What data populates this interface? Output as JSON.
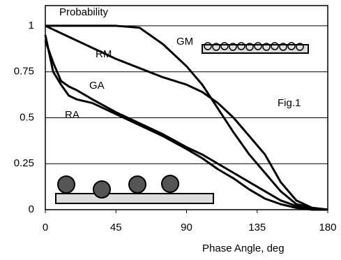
{
  "chart_data": {
    "type": "line",
    "title": "Probability",
    "x_label": "Phase Angle, deg",
    "annotation": "Fig.1",
    "x": [
      0,
      5,
      10,
      15,
      20,
      30,
      45,
      60,
      75,
      90,
      100,
      110,
      120,
      130,
      140,
      150,
      160,
      170,
      180
    ],
    "series": [
      {
        "name": "GM",
        "color": "#000000",
        "values": [
          1,
          1,
          1,
          1,
          1,
          1,
          1,
          0.99,
          0.9,
          0.78,
          0.68,
          0.55,
          0.42,
          0.3,
          0.2,
          0.1,
          0.03,
          0.01,
          0
        ]
      },
      {
        "name": "RM",
        "color": "#000000",
        "values": [
          1,
          0.98,
          0.96,
          0.94,
          0.92,
          0.88,
          0.82,
          0.77,
          0.72,
          0.68,
          0.64,
          0.58,
          0.5,
          0.4,
          0.3,
          0.15,
          0.05,
          0.01,
          0
        ]
      },
      {
        "name": "GA",
        "color": "#000000",
        "values": [
          0.92,
          0.8,
          0.7,
          0.67,
          0.65,
          0.6,
          0.53,
          0.47,
          0.41,
          0.34,
          0.3,
          0.25,
          0.2,
          0.15,
          0.1,
          0.05,
          0.02,
          0.01,
          0
        ]
      },
      {
        "name": "RA",
        "color": "#000000",
        "values": [
          0.95,
          0.75,
          0.68,
          0.62,
          0.6,
          0.58,
          0.52,
          0.46,
          0.4,
          0.33,
          0.28,
          0.22,
          0.17,
          0.11,
          0.06,
          0.03,
          0.01,
          0,
          0
        ]
      }
    ],
    "xlim": [
      0,
      180
    ],
    "xticks": [
      0,
      45,
      90,
      135,
      180
    ],
    "ylim": [
      0,
      1.11
    ],
    "yticks": [
      0,
      0.25,
      0.5,
      0.75,
      1
    ],
    "grid": true
  }
}
